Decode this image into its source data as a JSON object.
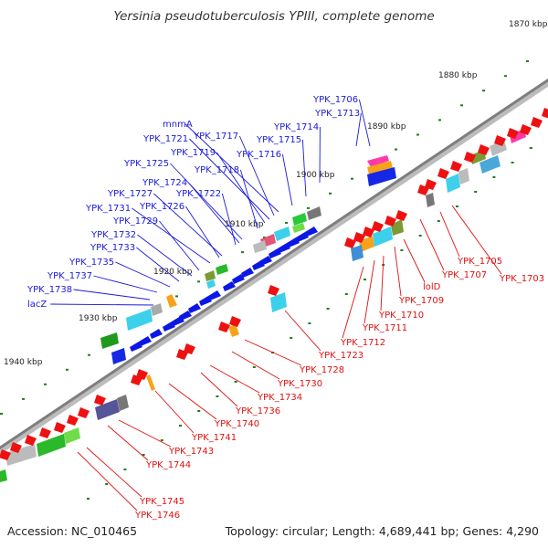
{
  "title": "Yersinia pseudotuberculosis YPIII, complete genome",
  "footer": {
    "accession": "Accession: NC_010465",
    "summary": "Topology: circular; Length: 4,689,441 bp; Genes: 4,290"
  },
  "colors": {
    "plus_label": "#1a1adc",
    "minus_label": "#e01010",
    "plus_gene": "#0b17e6",
    "minus_gene": "#ee1111",
    "backbone": "#8a8a8a",
    "tick": "#1e7d1e"
  },
  "scale_labels": [
    "1870 kbp",
    "1880 kbp",
    "1890 kbp",
    "1900 kbp",
    "1910 kbp",
    "1920 kbp",
    "1930 kbp",
    "1940 kbp"
  ],
  "plus_strand_genes": [
    "YPK_1706",
    "YPK_1713",
    "YPK_1714",
    "YPK_1715",
    "YPK_1716",
    "mnmA",
    "YPK_1717",
    "YPK_1721",
    "YPK_1719",
    "YPK_1718",
    "YPK_1725",
    "YPK_1724",
    "YPK_1722",
    "YPK_1727",
    "YPK_1726",
    "YPK_1731",
    "YPK_1729",
    "YPK_1732",
    "YPK_1733",
    "YPK_1735",
    "YPK_1737",
    "YPK_1738",
    "lacZ"
  ],
  "minus_strand_genes": [
    "YPK_1705",
    "YPK_1707",
    "YPK_1703",
    "lolD",
    "YPK_1709",
    "YPK_1710",
    "YPK_1711",
    "YPK_1712",
    "YPK_1723",
    "YPK_1728",
    "YPK_1730",
    "YPK_1734",
    "YPK_1736",
    "YPK_1740",
    "YPK_1741",
    "YPK_1743",
    "YPK_1744",
    "YPK_1745",
    "YPK_1746"
  ]
}
